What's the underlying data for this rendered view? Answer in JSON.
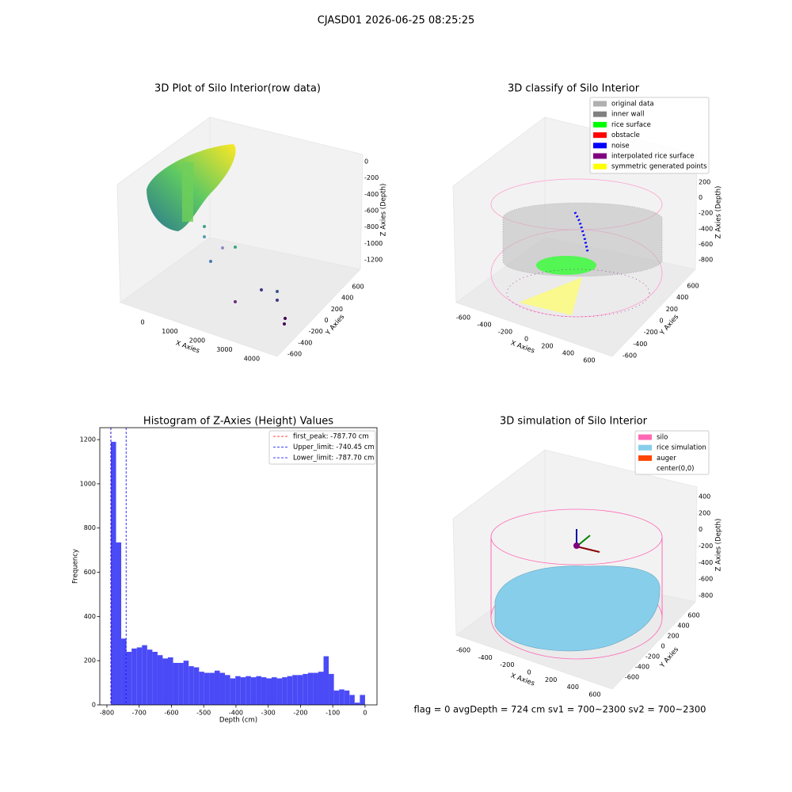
{
  "figure_title": "CJASD01 2026-06-25 08:25:25",
  "status_text": "flag = 0     avgDepth = 724 cm  sv1 = 700~2300  sv2 = 700~2300",
  "chart_data": [
    {
      "type": "scatter3d",
      "title": "3D Plot of Silo Interior(row data)",
      "xlabel": "X Axies",
      "ylabel": "Y Axies",
      "zlabel": "Z Axies (Depth)",
      "xlim": [
        -700,
        4700
      ],
      "xticks": [
        0,
        1000,
        2000,
        3000,
        4000
      ],
      "ylim": [
        -700,
        700
      ],
      "yticks": [
        -600,
        -400,
        -200,
        0,
        200,
        400,
        600
      ],
      "zlim": [
        -1300,
        100
      ],
      "zticks": [
        0,
        -200,
        -400,
        -600,
        -800,
        -1000,
        -1200
      ]
    },
    {
      "type": "scatter3d",
      "title": "3D classify of Silo Interior",
      "xlabel": "X Axies",
      "ylabel": "Y Axies",
      "zlabel": "Z Axies (Depth)",
      "xlim": [
        -700,
        700
      ],
      "xticks": [
        -600,
        -400,
        -200,
        0,
        200,
        400,
        600
      ],
      "ylim": [
        -700,
        700
      ],
      "yticks": [
        -600,
        -400,
        -200,
        0,
        200,
        400,
        600
      ],
      "zlim": [
        -900,
        300
      ],
      "zticks": [
        200,
        0,
        -200,
        -400,
        -600,
        -800
      ],
      "series": [
        {
          "name": "original data",
          "color": "#b0b0b0"
        },
        {
          "name": "inner wall",
          "color": "#808080"
        },
        {
          "name": "rice surface",
          "color": "#00ff00"
        },
        {
          "name": "obstacle",
          "color": "#ff0000"
        },
        {
          "name": "noise",
          "color": "#0000ff"
        },
        {
          "name": "interpolated rice surface",
          "color": "#800080"
        },
        {
          "name": "symmetric generated points",
          "color": "#ffff00"
        }
      ]
    },
    {
      "type": "histogram",
      "title": "Histogram of Z-Axies (Height) Values",
      "xlabel": "Depth (cm)",
      "ylabel": "Frequency",
      "color": "#4a4af7",
      "xlim": [
        -822,
        37
      ],
      "xticks": [
        -800,
        -700,
        -600,
        -500,
        -400,
        -300,
        -200,
        -100,
        0
      ],
      "ylim": [
        0,
        1254
      ],
      "yticks": [
        0,
        200,
        400,
        600,
        800,
        1000,
        1200
      ],
      "bins": [
        -787.7,
        -771.6,
        -755.6,
        -739.5,
        -723.4,
        -707.3,
        -691.3,
        -675.2,
        -659.1,
        -643.0,
        -627.0,
        -610.9,
        -594.8,
        -578.7,
        -562.7,
        -546.6,
        -530.5,
        -514.4,
        -498.4,
        -482.3,
        -466.2,
        -450.1,
        -434.1,
        -418.0,
        -401.9,
        -385.8,
        -369.8,
        -353.7,
        -337.6,
        -321.5,
        -305.5,
        -289.4,
        -273.3,
        -257.2,
        -241.2,
        -225.1,
        -209.0,
        -192.9,
        -176.9,
        -160.8,
        -144.7,
        -128.6,
        -112.6,
        -96.5,
        -80.4,
        -64.3,
        -48.2,
        -32.2,
        -16.1,
        0
      ],
      "values": [
        1190,
        735,
        300,
        240,
        255,
        260,
        270,
        250,
        240,
        225,
        210,
        215,
        190,
        190,
        200,
        175,
        170,
        150,
        145,
        145,
        155,
        145,
        135,
        120,
        130,
        125,
        130,
        125,
        130,
        125,
        120,
        125,
        120,
        125,
        130,
        135,
        135,
        140,
        145,
        145,
        150,
        220,
        140,
        65,
        70,
        65,
        45,
        10,
        45
      ],
      "vlines": [
        {
          "name": "first_peak: -787.70 cm",
          "value": -787.7,
          "color": "#ff0000"
        },
        {
          "name": "Upper_limit: -740.45 cm",
          "value": -740.45,
          "color": "#0000ff"
        },
        {
          "name": "Lower_limit: -787.70 cm",
          "value": -787.7,
          "color": "#0000ff"
        }
      ]
    },
    {
      "type": "surface3d",
      "title": "3D simulation of Silo Interior",
      "xlabel": "X Axies",
      "ylabel": "Y Axies",
      "zlabel": "Z Axies (Depth)",
      "xlim": [
        -700,
        700
      ],
      "xticks": [
        -600,
        -400,
        -200,
        0,
        200,
        400,
        600
      ],
      "ylim": [
        -700,
        700
      ],
      "yticks": [
        -600,
        -400,
        -200,
        0,
        200,
        400,
        600
      ],
      "zlim": [
        -900,
        500
      ],
      "zticks": [
        400,
        200,
        0,
        -200,
        -400,
        -600,
        -800
      ],
      "series": [
        {
          "name": "silo",
          "color": "#ff69b4"
        },
        {
          "name": "rice simulation",
          "color": "#87ceeb"
        },
        {
          "name": "auger",
          "color": "#ff4500"
        },
        {
          "name": "center(0,0)",
          "color": "#ffffff"
        }
      ]
    }
  ]
}
